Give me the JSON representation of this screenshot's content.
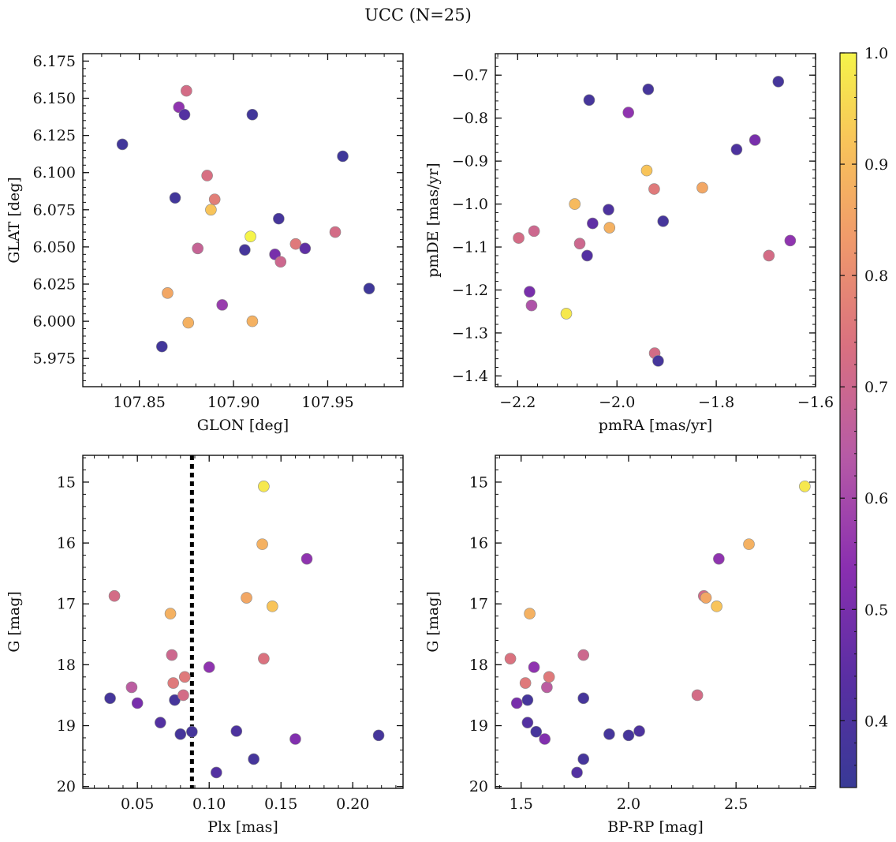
{
  "title": "UCC (N=25)",
  "colorbar": {
    "range": [
      0.34,
      1.0
    ],
    "ticks": [
      0.4,
      0.5,
      0.6,
      0.7,
      0.8,
      0.9,
      1.0
    ],
    "tick_labels": [
      "0.4",
      "0.5",
      "0.6",
      "0.7",
      "0.8",
      "0.9",
      "1.0"
    ],
    "colormap": "plasma"
  },
  "chart_data": [
    {
      "type": "scatter",
      "id": "glon-glat",
      "xlabel": "GLON [deg]",
      "ylabel": "GLAT [deg]",
      "xlim": [
        107.82,
        107.99
      ],
      "ylim": [
        5.956,
        6.18
      ],
      "y_inverted": false,
      "xticks": [
        107.85,
        107.9,
        107.95
      ],
      "xtick_labels": [
        "107.85",
        "107.90",
        "107.95"
      ],
      "yticks": [
        5.975,
        6.0,
        6.025,
        6.05,
        6.075,
        6.1,
        6.125,
        6.15,
        6.175
      ],
      "ytick_labels": [
        "5.975",
        "6.000",
        "6.025",
        "6.050",
        "6.075",
        "6.100",
        "6.125",
        "6.150",
        "6.175"
      ],
      "points": [
        {
          "x": 107.841,
          "y": 6.119,
          "c": 0.37
        },
        {
          "x": 107.862,
          "y": 5.983,
          "c": 0.37
        },
        {
          "x": 107.869,
          "y": 6.083,
          "c": 0.37
        },
        {
          "x": 107.871,
          "y": 6.144,
          "c": 0.55
        },
        {
          "x": 107.874,
          "y": 6.139,
          "c": 0.42
        },
        {
          "x": 107.875,
          "y": 6.155,
          "c": 0.72
        },
        {
          "x": 107.865,
          "y": 6.019,
          "c": 0.86
        },
        {
          "x": 107.876,
          "y": 5.999,
          "c": 0.88
        },
        {
          "x": 107.881,
          "y": 6.049,
          "c": 0.68
        },
        {
          "x": 107.886,
          "y": 6.098,
          "c": 0.73
        },
        {
          "x": 107.888,
          "y": 6.075,
          "c": 0.92
        },
        {
          "x": 107.89,
          "y": 6.082,
          "c": 0.77
        },
        {
          "x": 107.894,
          "y": 6.011,
          "c": 0.57
        },
        {
          "x": 107.906,
          "y": 6.048,
          "c": 0.38
        },
        {
          "x": 107.909,
          "y": 6.057,
          "c": 1.0
        },
        {
          "x": 107.91,
          "y": 6.139,
          "c": 0.37
        },
        {
          "x": 107.91,
          "y": 6.0,
          "c": 0.88
        },
        {
          "x": 107.922,
          "y": 6.045,
          "c": 0.5
        },
        {
          "x": 107.924,
          "y": 6.069,
          "c": 0.38
        },
        {
          "x": 107.925,
          "y": 6.04,
          "c": 0.7
        },
        {
          "x": 107.933,
          "y": 6.052,
          "c": 0.76
        },
        {
          "x": 107.938,
          "y": 6.049,
          "c": 0.45
        },
        {
          "x": 107.954,
          "y": 6.06,
          "c": 0.72
        },
        {
          "x": 107.958,
          "y": 6.111,
          "c": 0.36
        },
        {
          "x": 107.972,
          "y": 6.022,
          "c": 0.36
        }
      ]
    },
    {
      "type": "scatter",
      "id": "pmra-pmde",
      "xlabel": "pmRA [mas/yr]",
      "ylabel": "pmDE [mas/yr]",
      "xlim": [
        -2.245,
        -1.6
      ],
      "ylim": [
        -1.425,
        -0.65
      ],
      "y_inverted": false,
      "xticks": [
        -2.2,
        -2.0,
        -1.8,
        -1.6
      ],
      "xtick_labels": [
        "−2.2",
        "−2.0",
        "−1.8",
        "−1.6"
      ],
      "yticks": [
        -1.4,
        -1.3,
        -1.2,
        -1.1,
        -1.0,
        -0.9,
        -0.8,
        -0.7
      ],
      "ytick_labels": [
        "−1.4",
        "−1.3",
        "−1.2",
        "−1.1",
        "−1.0",
        "−0.9",
        "−0.8",
        "−0.7"
      ],
      "points": [
        {
          "x": -2.198,
          "y": -1.079,
          "c": 0.72
        },
        {
          "x": -2.167,
          "y": -1.063,
          "c": 0.7
        },
        {
          "x": -2.176,
          "y": -1.204,
          "c": 0.5
        },
        {
          "x": -2.172,
          "y": -1.236,
          "c": 0.62
        },
        {
          "x": -2.102,
          "y": -1.255,
          "c": 0.98
        },
        {
          "x": -2.085,
          "y": -1.0,
          "c": 0.9
        },
        {
          "x": -2.075,
          "y": -1.092,
          "c": 0.7
        },
        {
          "x": -2.06,
          "y": -1.12,
          "c": 0.42
        },
        {
          "x": -2.056,
          "y": -0.758,
          "c": 0.38
        },
        {
          "x": -2.049,
          "y": -1.045,
          "c": 0.45
        },
        {
          "x": -2.017,
          "y": -1.013,
          "c": 0.4
        },
        {
          "x": -2.015,
          "y": -1.055,
          "c": 0.88
        },
        {
          "x": -1.977,
          "y": -0.787,
          "c": 0.55
        },
        {
          "x": -1.94,
          "y": -0.922,
          "c": 0.92
        },
        {
          "x": -1.937,
          "y": -0.733,
          "c": 0.38
        },
        {
          "x": -1.925,
          "y": -0.965,
          "c": 0.76
        },
        {
          "x": -1.924,
          "y": -1.347,
          "c": 0.72
        },
        {
          "x": -1.917,
          "y": -1.365,
          "c": 0.38
        },
        {
          "x": -1.907,
          "y": -1.04,
          "c": 0.38
        },
        {
          "x": -1.828,
          "y": -0.962,
          "c": 0.86
        },
        {
          "x": -1.759,
          "y": -0.873,
          "c": 0.4
        },
        {
          "x": -1.722,
          "y": -0.851,
          "c": 0.5
        },
        {
          "x": -1.694,
          "y": -1.12,
          "c": 0.72
        },
        {
          "x": -1.675,
          "y": -0.715,
          "c": 0.38
        },
        {
          "x": -1.651,
          "y": -1.085,
          "c": 0.55
        }
      ]
    },
    {
      "type": "scatter",
      "id": "plx-g",
      "xlabel": "Plx [mas]",
      "ylabel": "G [mag]",
      "xlim": [
        0.012,
        0.235
      ],
      "ylim": [
        20.03,
        14.56
      ],
      "y_inverted": true,
      "xticks": [
        0.05,
        0.1,
        0.15,
        0.2
      ],
      "xtick_labels": [
        "0.05",
        "0.10",
        "0.15",
        "0.20"
      ],
      "yticks": [
        15,
        16,
        17,
        18,
        19,
        20
      ],
      "ytick_labels": [
        "15",
        "16",
        "17",
        "18",
        "19",
        "20"
      ],
      "vline": {
        "x": 0.088,
        "style": "dotted"
      },
      "points": [
        {
          "x": 0.031,
          "y": 18.55,
          "c": 0.38
        },
        {
          "x": 0.034,
          "y": 16.87,
          "c": 0.72
        },
        {
          "x": 0.046,
          "y": 18.37,
          "c": 0.65
        },
        {
          "x": 0.05,
          "y": 18.63,
          "c": 0.5
        },
        {
          "x": 0.066,
          "y": 18.95,
          "c": 0.42
        },
        {
          "x": 0.073,
          "y": 17.16,
          "c": 0.88
        },
        {
          "x": 0.074,
          "y": 17.84,
          "c": 0.7
        },
        {
          "x": 0.075,
          "y": 18.3,
          "c": 0.76
        },
        {
          "x": 0.076,
          "y": 18.58,
          "c": 0.38
        },
        {
          "x": 0.08,
          "y": 19.14,
          "c": 0.38
        },
        {
          "x": 0.082,
          "y": 18.5,
          "c": 0.72
        },
        {
          "x": 0.083,
          "y": 18.2,
          "c": 0.76
        },
        {
          "x": 0.088,
          "y": 19.1,
          "c": 0.38
        },
        {
          "x": 0.1,
          "y": 18.04,
          "c": 0.55
        },
        {
          "x": 0.105,
          "y": 19.77,
          "c": 0.42
        },
        {
          "x": 0.119,
          "y": 19.09,
          "c": 0.4
        },
        {
          "x": 0.126,
          "y": 16.9,
          "c": 0.86
        },
        {
          "x": 0.131,
          "y": 19.55,
          "c": 0.38
        },
        {
          "x": 0.137,
          "y": 16.02,
          "c": 0.88
        },
        {
          "x": 0.138,
          "y": 15.07,
          "c": 0.98
        },
        {
          "x": 0.138,
          "y": 17.9,
          "c": 0.74
        },
        {
          "x": 0.144,
          "y": 17.04,
          "c": 0.92
        },
        {
          "x": 0.16,
          "y": 19.22,
          "c": 0.52
        },
        {
          "x": 0.168,
          "y": 16.26,
          "c": 0.55
        },
        {
          "x": 0.218,
          "y": 19.16,
          "c": 0.38
        }
      ]
    },
    {
      "type": "scatter",
      "id": "bprp-g",
      "xlabel": "BP-RP [mag]",
      "ylabel": "G [mag]",
      "xlim": [
        1.38,
        2.87
      ],
      "ylim": [
        20.03,
        14.56
      ],
      "y_inverted": true,
      "xticks": [
        1.5,
        2.0,
        2.5
      ],
      "xtick_labels": [
        "1.5",
        "2.0",
        "2.5"
      ],
      "yticks": [
        15,
        16,
        17,
        18,
        19,
        20
      ],
      "ytick_labels": [
        "15",
        "16",
        "17",
        "18",
        "19",
        "20"
      ],
      "points": [
        {
          "x": 1.45,
          "y": 17.9,
          "c": 0.74
        },
        {
          "x": 1.48,
          "y": 18.63,
          "c": 0.5
        },
        {
          "x": 1.52,
          "y": 18.3,
          "c": 0.76
        },
        {
          "x": 1.53,
          "y": 18.58,
          "c": 0.38
        },
        {
          "x": 1.53,
          "y": 18.95,
          "c": 0.42
        },
        {
          "x": 1.54,
          "y": 17.16,
          "c": 0.88
        },
        {
          "x": 1.56,
          "y": 18.04,
          "c": 0.55
        },
        {
          "x": 1.57,
          "y": 19.1,
          "c": 0.38
        },
        {
          "x": 1.61,
          "y": 19.22,
          "c": 0.52
        },
        {
          "x": 1.62,
          "y": 18.37,
          "c": 0.65
        },
        {
          "x": 1.63,
          "y": 18.2,
          "c": 0.76
        },
        {
          "x": 1.76,
          "y": 19.77,
          "c": 0.42
        },
        {
          "x": 1.79,
          "y": 17.84,
          "c": 0.7
        },
        {
          "x": 1.79,
          "y": 18.55,
          "c": 0.38
        },
        {
          "x": 1.79,
          "y": 19.55,
          "c": 0.38
        },
        {
          "x": 1.91,
          "y": 19.14,
          "c": 0.38
        },
        {
          "x": 2.0,
          "y": 19.16,
          "c": 0.38
        },
        {
          "x": 2.05,
          "y": 19.09,
          "c": 0.4
        },
        {
          "x": 2.32,
          "y": 18.5,
          "c": 0.72
        },
        {
          "x": 2.35,
          "y": 16.87,
          "c": 0.72
        },
        {
          "x": 2.36,
          "y": 16.9,
          "c": 0.86
        },
        {
          "x": 2.41,
          "y": 17.04,
          "c": 0.92
        },
        {
          "x": 2.42,
          "y": 16.26,
          "c": 0.55
        },
        {
          "x": 2.56,
          "y": 16.02,
          "c": 0.88
        },
        {
          "x": 2.82,
          "y": 15.07,
          "c": 0.98
        }
      ]
    }
  ]
}
